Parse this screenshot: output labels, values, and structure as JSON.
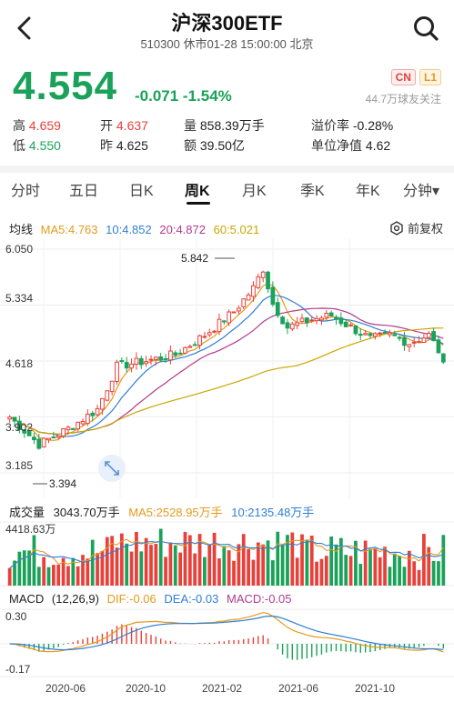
{
  "header": {
    "title": "沪深300ETF",
    "subtitle": "510300 休市01-28 15:00:00 北京"
  },
  "quote": {
    "price": "4.554",
    "change": "-0.071 -1.54%",
    "badges": [
      "CN",
      "L1"
    ],
    "followers": "44.7万球友关注"
  },
  "stats": {
    "high_label": "高",
    "high": "4.659",
    "open_label": "开",
    "open": "4.637",
    "volume_label": "量",
    "volume": "858.39万手",
    "premium_label": "溢价率",
    "premium": "-0.28%",
    "low_label": "低",
    "low": "4.550",
    "prev_label": "昨",
    "prev": "4.625",
    "amount_label": "额",
    "amount": "39.50亿",
    "nav_label": "单位净值",
    "nav": "4.62"
  },
  "tabs": [
    "分时",
    "五日",
    "日K",
    "周K",
    "月K",
    "季K",
    "年K",
    "分钟▾"
  ],
  "active_tab": "周K",
  "ma_bar": {
    "label": "均线",
    "ma5": "MA5:4.763",
    "ma10": "10:4.852",
    "ma20": "20:4.872",
    "ma60": "60:5.021",
    "adjust": "前复权"
  },
  "price_chart": {
    "y_ticks": [
      "6.050",
      "5.334",
      "4.618",
      "3.902",
      "3.185"
    ],
    "high_mark": "5.842",
    "low_mark": "3.394"
  },
  "volume_bar": {
    "label": "成交量",
    "vol": "3043.70万手",
    "ma5": "MA5:2528.95万手",
    "ma10": "10:2135.48万手",
    "y_max": "4418.63万"
  },
  "macd_bar": {
    "label": "MACD",
    "params": "(12,26,9)",
    "dif": "DIF:-0.06",
    "dea": "DEA:-0.03",
    "macd": "MACD:-0.05",
    "y_top": "0.30",
    "y_bottom": "-0.17"
  },
  "x_dates": [
    "2020-06",
    "2020-10",
    "2021-02",
    "2021-06",
    "2021-10"
  ],
  "colors": {
    "up": "#e8403a",
    "down": "#1aa25a",
    "ma5": "#e59a1c",
    "ma10": "#2f7fd6",
    "ma20": "#b23b8d",
    "ma60": "#cba600"
  }
}
